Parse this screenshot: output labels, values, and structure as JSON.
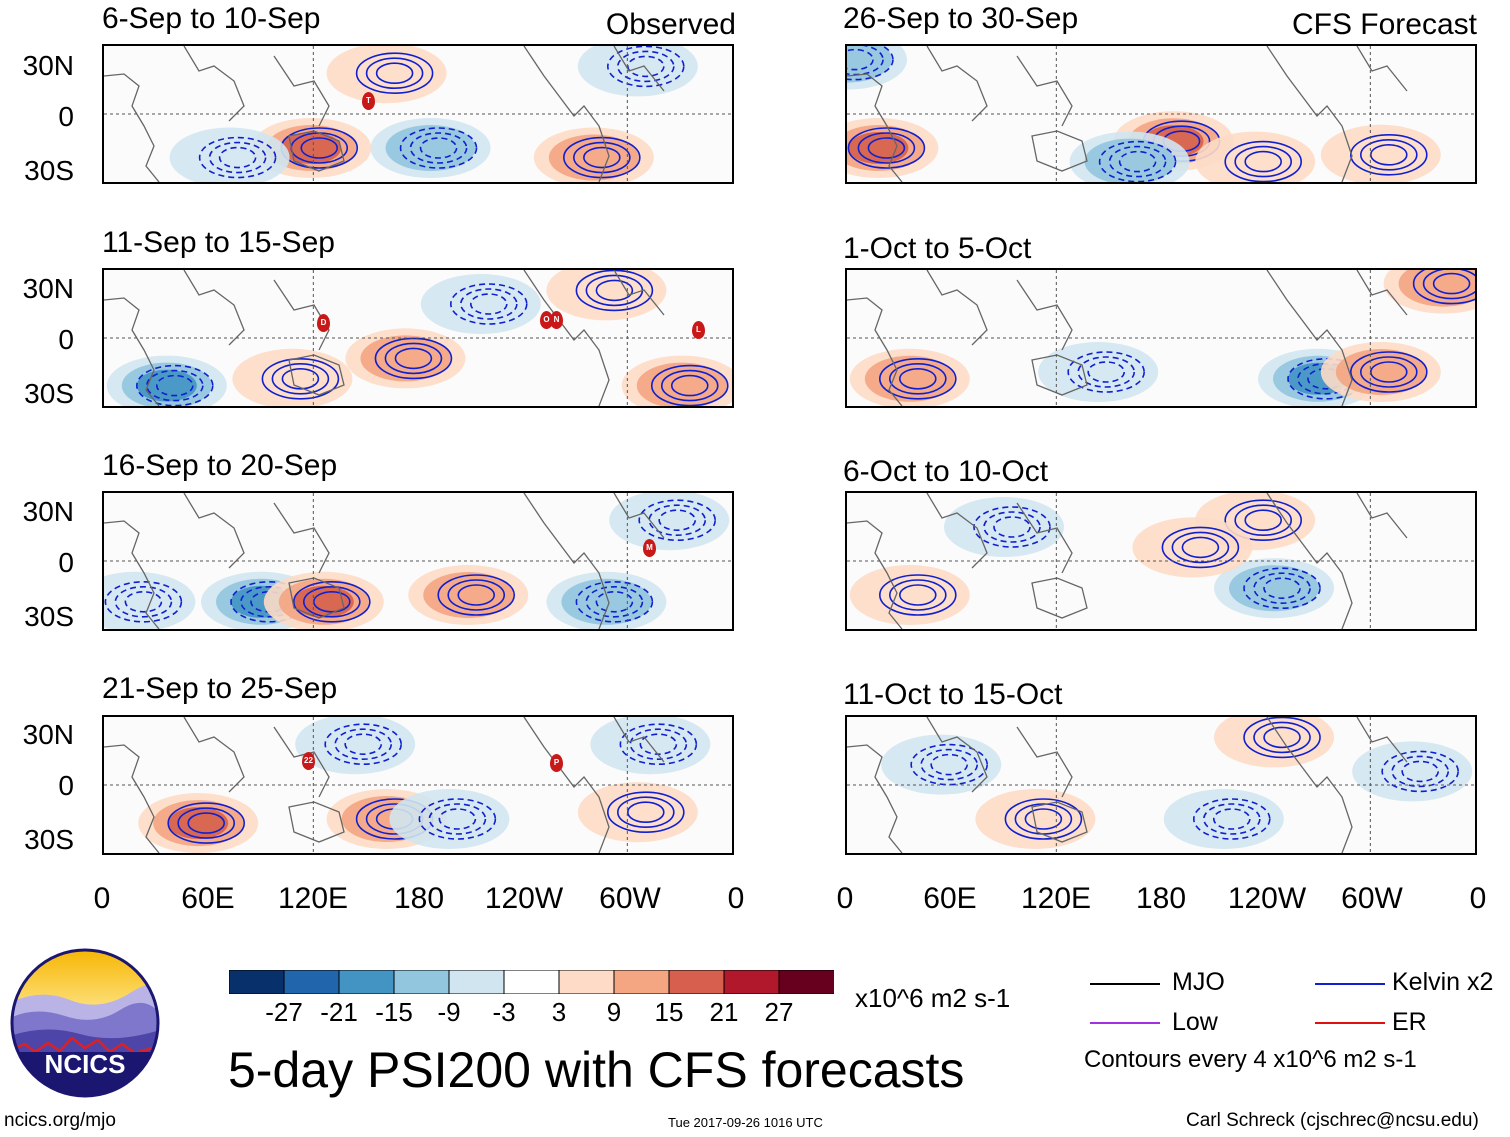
{
  "panels": {
    "left": [
      {
        "title": "6-Sep to 10-Sep",
        "tag": "Observed"
      },
      {
        "title": "11-Sep to 15-Sep"
      },
      {
        "title": "16-Sep to 20-Sep"
      },
      {
        "title": "21-Sep to 25-Sep"
      }
    ],
    "right": [
      {
        "title": "26-Sep to 30-Sep",
        "tag": "CFS Forecast"
      },
      {
        "title": "1-Oct to 5-Oct"
      },
      {
        "title": "6-Oct to 10-Oct"
      },
      {
        "title": "11-Oct to 15-Oct"
      }
    ]
  },
  "lat_labels": [
    "30N",
    "0",
    "30S"
  ],
  "lon_labels": [
    "0",
    "60E",
    "120E",
    "180",
    "120W",
    "60W",
    "0"
  ],
  "colorbar": {
    "colors": [
      "#08306b",
      "#2166ac",
      "#4393c3",
      "#92c5de",
      "#d1e5f0",
      "#ffffff",
      "#fddbc7",
      "#f4a582",
      "#d6604d",
      "#b2182b",
      "#67001f"
    ],
    "labels": [
      "-27",
      "-21",
      "-15",
      "-9",
      "-3",
      "3",
      "9",
      "15",
      "21",
      "27"
    ],
    "units": "x10^6 m2 s-1"
  },
  "legend": {
    "items": [
      {
        "label": "MJO",
        "color": "#000000"
      },
      {
        "label": "Kelvin x2",
        "color": "#1020d0"
      },
      {
        "label": "Low",
        "color": "#a030e0"
      },
      {
        "label": "ER",
        "color": "#e01010"
      }
    ],
    "contours": "Contours every 4 x10^6 m2 s-1"
  },
  "logo_text": "NCICS",
  "main_title": "5-day PSI200 with CFS forecasts",
  "footer": {
    "url": "ncics.org/mjo",
    "timestamp": "Tue 2017-09-26 1016 UTC",
    "author": "Carl Schreck (cjschrec@ncsu.edu)"
  },
  "storm_markers": [
    {
      "label": "T"
    },
    {
      "label": "D"
    },
    {
      "label": "O"
    },
    {
      "label": "N"
    },
    {
      "label": "L"
    },
    {
      "label": "M"
    },
    {
      "label": "22"
    },
    {
      "label": "P"
    }
  ]
}
